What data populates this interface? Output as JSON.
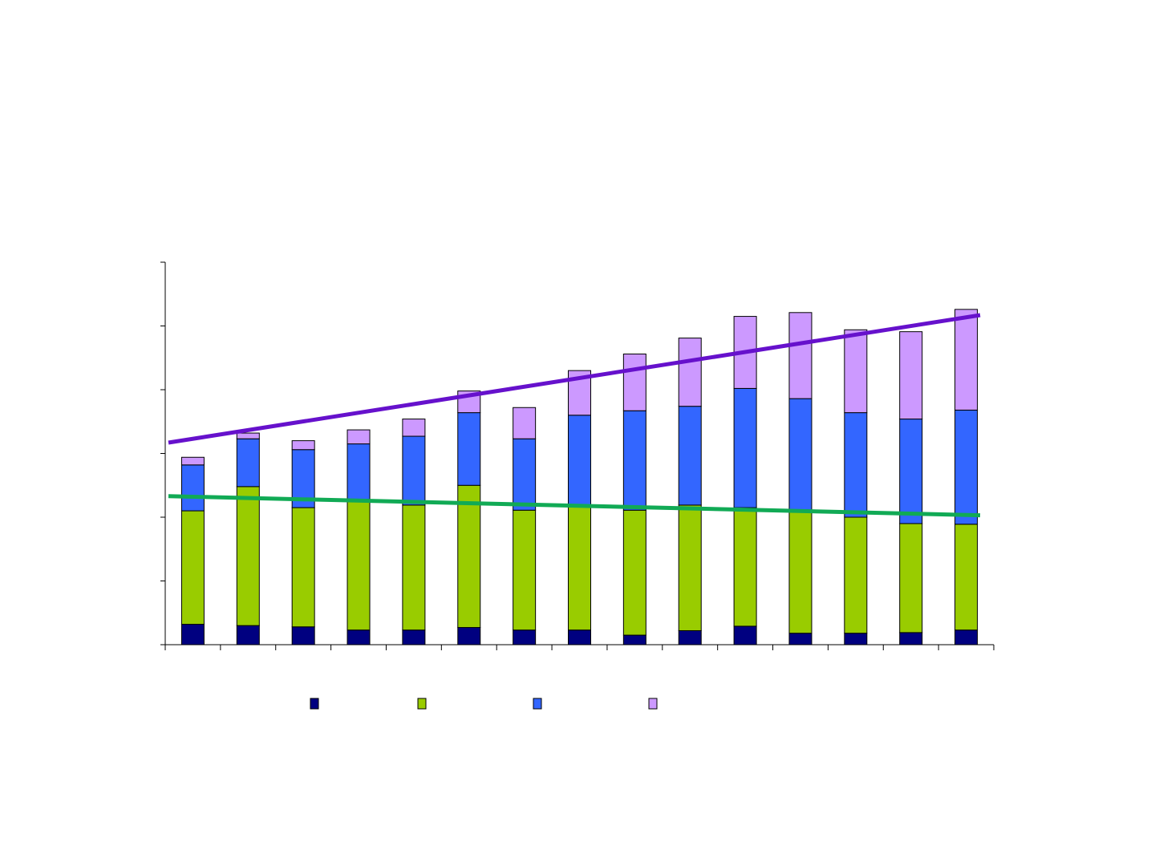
{
  "chart_data": {
    "type": "bar",
    "stacked": true,
    "categories": [
      "",
      "",
      "",
      "",
      "",
      "",
      "",
      "",
      "",
      "",
      "",
      "",
      "",
      "",
      ""
    ],
    "ylim": [
      0,
      600
    ],
    "y_ticks": [
      0,
      100,
      200,
      300,
      400,
      500,
      600
    ],
    "grid": false,
    "legend_position": "bottom",
    "series": [
      {
        "color": "#000080",
        "values": [
          32,
          30,
          28,
          23,
          23,
          27,
          23,
          23,
          15,
          22,
          29,
          18,
          18,
          19,
          23
        ]
      },
      {
        "color": "#99CC00",
        "values": [
          178,
          218,
          187,
          205,
          196,
          223,
          188,
          193,
          196,
          197,
          186,
          190,
          182,
          171,
          166
        ]
      },
      {
        "color": "#3366FF",
        "values": [
          72,
          75,
          91,
          87,
          108,
          114,
          112,
          144,
          156,
          155,
          187,
          178,
          164,
          164,
          179
        ]
      },
      {
        "color": "#CC99FF",
        "values": [
          12,
          9,
          14,
          22,
          27,
          34,
          49,
          70,
          89,
          107,
          113,
          135,
          130,
          137,
          158
        ]
      }
    ],
    "trendlines": [
      {
        "color": "#6611CC",
        "start": 317,
        "end": 517
      },
      {
        "color": "#11AA55",
        "start": 233,
        "end": 203
      }
    ]
  }
}
